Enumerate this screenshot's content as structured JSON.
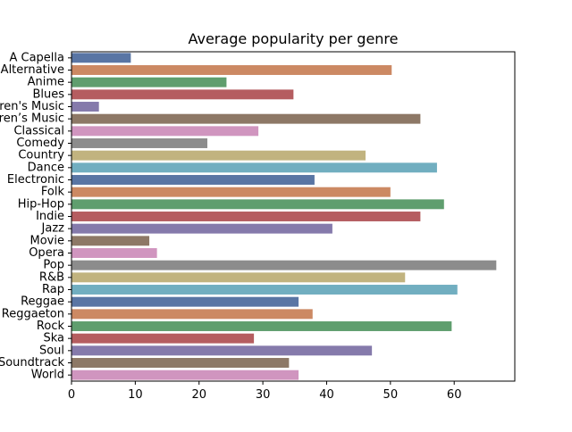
{
  "chart_data": {
    "type": "bar",
    "orientation": "horizontal",
    "title": "Average popularity per genre",
    "xlabel": "",
    "ylabel": "",
    "xlim": [
      0,
      69.5
    ],
    "xticks": [
      0,
      10,
      20,
      30,
      40,
      50,
      60
    ],
    "grid": false,
    "categories": [
      "A Capella",
      "Alternative",
      "Anime",
      "Blues",
      "Children's Music",
      "Children’s Music",
      "Classical",
      "Comedy",
      "Country",
      "Dance",
      "Electronic",
      "Folk",
      "Hip-Hop",
      "Indie",
      "Jazz",
      "Movie",
      "Opera",
      "Pop",
      "R&B",
      "Rap",
      "Reggae",
      "Reggaeton",
      "Rock",
      "Ska",
      "Soul",
      "Soundtrack",
      "World"
    ],
    "values": [
      9.3,
      50.2,
      24.3,
      34.8,
      4.3,
      54.7,
      29.3,
      21.3,
      46.1,
      57.3,
      38.1,
      50.0,
      58.4,
      54.7,
      40.9,
      12.2,
      13.4,
      66.6,
      52.3,
      60.5,
      35.6,
      37.8,
      59.6,
      28.6,
      47.1,
      34.1,
      35.6
    ],
    "colors": [
      "#5975a4",
      "#cc8963",
      "#5f9e6e",
      "#b55d60",
      "#857aab",
      "#8d7866",
      "#d095bf",
      "#8c8c8c",
      "#c1b37f",
      "#71aec0"
    ]
  }
}
